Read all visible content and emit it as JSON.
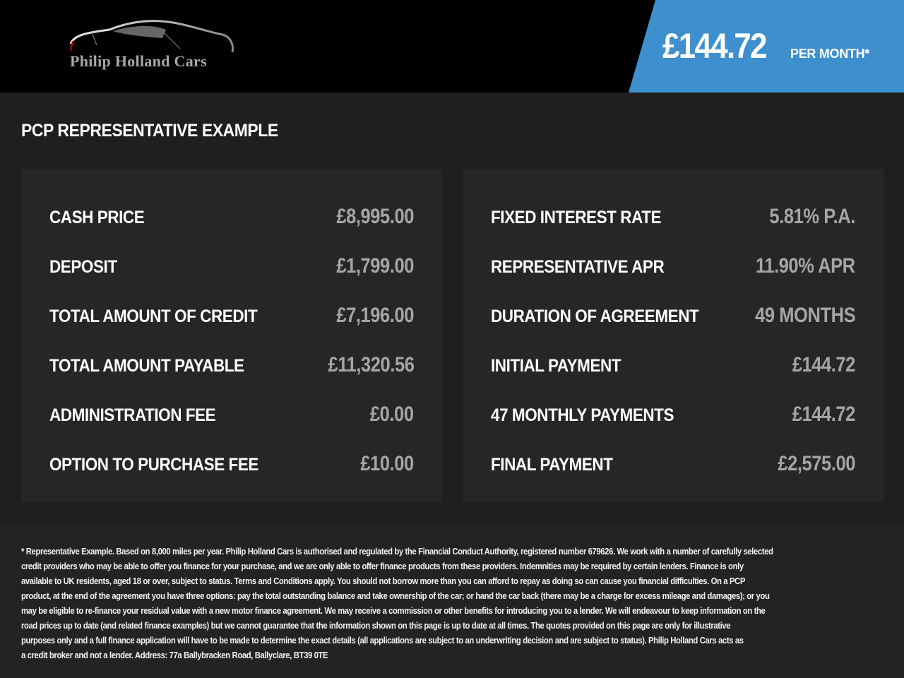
{
  "brand": {
    "name": "Philip Holland Cars",
    "accent": "#3d8fce"
  },
  "header": {
    "monthly_price": "£144.72",
    "per_month": "PER MONTH*"
  },
  "section_title": "PCP REPRESENTATIVE EXAMPLE",
  "left_rows": [
    {
      "label": "CASH PRICE",
      "value": "£8,995.00"
    },
    {
      "label": "DEPOSIT",
      "value": "£1,799.00"
    },
    {
      "label": "TOTAL AMOUNT OF CREDIT",
      "value": "£7,196.00"
    },
    {
      "label": "TOTAL AMOUNT PAYABLE",
      "value": "£11,320.56"
    },
    {
      "label": "ADMINISTRATION FEE",
      "value": "£0.00"
    },
    {
      "label": "OPTION TO PURCHASE FEE",
      "value": "£10.00"
    }
  ],
  "right_rows": [
    {
      "label": "FIXED INTEREST RATE",
      "value": "5.81% P.A."
    },
    {
      "label": "REPRESENTATIVE APR",
      "value": "11.90% APR"
    },
    {
      "label": "DURATION OF AGREEMENT",
      "value": "49 MONTHS"
    },
    {
      "label": "INITIAL PAYMENT",
      "value": "£144.72"
    },
    {
      "label": "47 MONTHLY PAYMENTS",
      "value": "£144.72"
    },
    {
      "label": "FINAL PAYMENT",
      "value": "£2,575.00"
    }
  ],
  "disclaimer": [
    "* Representative Example. Based on 8,000 miles per year. Philip Holland Cars is authorised and regulated by the Financial Conduct Authority, registered number 679626. We work with a number of carefully selected",
    "credit providers who may be able to offer you finance for your purchase, and we are only able to offer finance products from these providers. Indemnities may be required by certain lenders. Finance is only",
    "available to UK residents, aged 18 or over, subject to status. Terms and Conditions apply. You should not borrow more than you can afford to repay as doing so can cause you financial difficulties. On a PCP",
    "product, at the end of the agreement you have three options: pay the total outstanding balance and take ownership of the car; or hand the car back (there may be a charge for excess mileage and damages); or you",
    "may be eligible to re-finance your residual value with a new motor finance agreement. We may receive a commission or other benefits for introducing you to a lender. We will endeavour to keep information on the",
    "road prices up to date (and related finance examples) but we cannot guarantee that the information shown on this page is up to date at all times. The quotes provided on this page are only for illustrative",
    "purposes only and a full finance application will have to be made to determine the exact details (all applications are subject to an underwriting decision and are subject to status). Philip Holland Cars acts as",
    "a credit broker and not a lender. Address: 77a Ballybracken Road, Ballyclare, BT39 0TE"
  ]
}
